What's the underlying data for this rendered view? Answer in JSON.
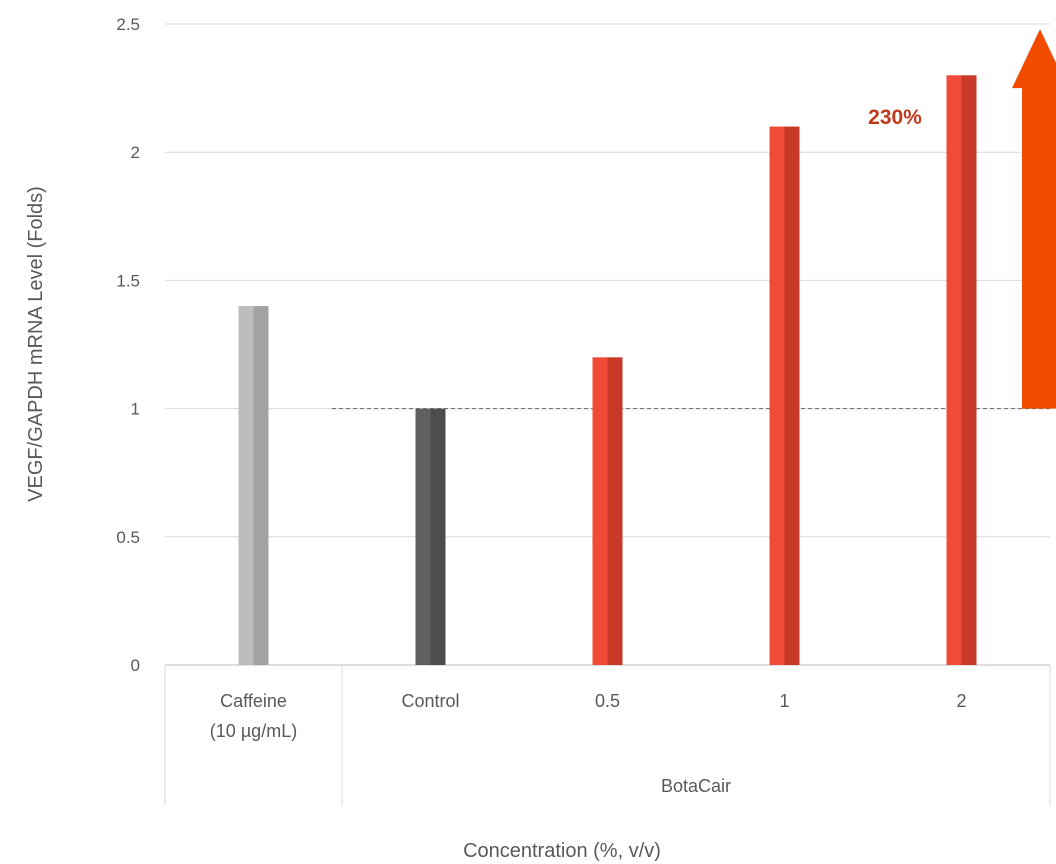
{
  "chart_data": {
    "type": "bar",
    "categories": [
      "Caffeine (10 µg/mL)",
      "Control",
      "0.5",
      "1",
      "2"
    ],
    "category_lines": [
      [
        "Caffeine",
        "(10 µg/mL)"
      ],
      [
        "Control"
      ],
      [
        "0.5"
      ],
      [
        "1"
      ],
      [
        "2"
      ]
    ],
    "group_label": "BotaCair",
    "values": [
      1.4,
      1.0,
      1.2,
      2.1,
      2.3
    ],
    "colors": [
      [
        "#bdbdbd",
        "#a3a3a3"
      ],
      [
        "#606060",
        "#4d4d4d"
      ],
      [
        "#f04b36",
        "#c73a28"
      ],
      [
        "#f04b36",
        "#c73a28"
      ],
      [
        "#f04b36",
        "#c73a28"
      ]
    ],
    "ylim": [
      0,
      2.5
    ],
    "yticks": [
      0,
      0.5,
      1,
      1.5,
      2,
      2.5
    ],
    "ytick_labels": [
      "0",
      "0.5",
      "1",
      "1.5",
      "2",
      "2.5"
    ],
    "xlabel": "Concentration (%, v/v)",
    "ylabel": "VEGF/GAPDH mRNA Level (Folds)",
    "reference_line": 1,
    "annotation": "230%",
    "arrow_color": "#f24b00",
    "grid": true
  }
}
